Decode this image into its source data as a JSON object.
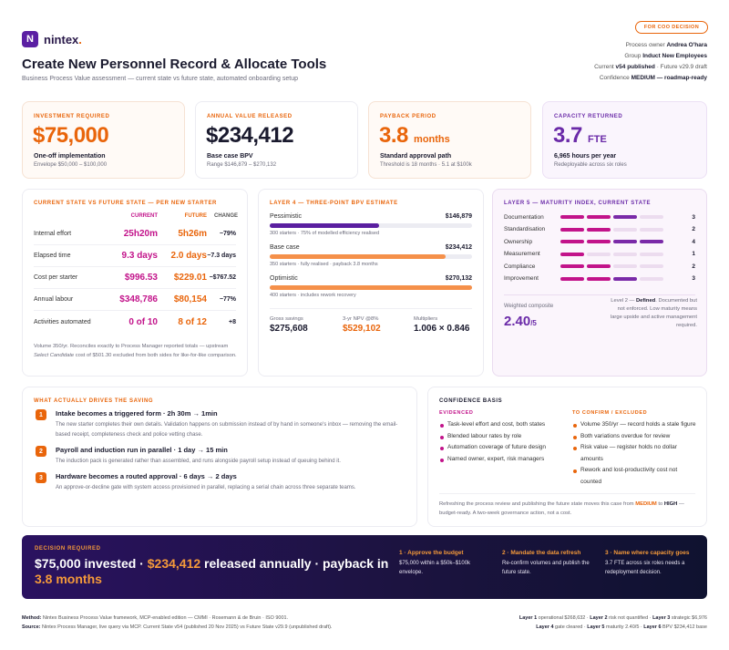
{
  "brand": {
    "logo_letter": "N",
    "name": "nintex",
    "dot": "."
  },
  "header": {
    "title": "Create New Personnel Record & Allocate Tools",
    "subtitle": "Business Process Value assessment — current state vs future state, automated onboarding setup",
    "badge": "FOR COO DECISION",
    "meta": [
      {
        "k": "Process owner ",
        "v": "Andrea O'hara",
        "x": ""
      },
      {
        "k": "Group ",
        "v": "Induct New Employees",
        "x": ""
      },
      {
        "k": "Current ",
        "v": "v54 published",
        "x": " · Future v29.9 draft"
      },
      {
        "k": "Confidence ",
        "v": "MEDIUM — roadmap-ready",
        "x": ""
      }
    ]
  },
  "kpis": [
    {
      "label": "INVESTMENT REQUIRED",
      "value": "$75,000",
      "unit": "",
      "sub1": "One-off implementation",
      "sub2": "Envelope $50,000 – $100,000",
      "color": "#e9650b"
    },
    {
      "label": "ANNUAL VALUE RELEASED",
      "value": "$234,412",
      "unit": "",
      "sub1": "Base case BPV",
      "sub2": "Range $146,879 – $270,132",
      "color": "#1a1a2e"
    },
    {
      "label": "PAYBACK PERIOD",
      "value": "3.8",
      "unit": "months",
      "sub1": "Standard approval path",
      "sub2": "Threshold is 18 months · 5.1 at $100k",
      "color": "#e9650b"
    },
    {
      "label": "CAPACITY RETURNED",
      "value": "3.7",
      "unit": "FTE",
      "sub1": "6,965 hours per year",
      "sub2": "Redeployable across six roles",
      "color": "#6a2aa8"
    }
  ],
  "state": {
    "label": "CURRENT STATE VS FUTURE STATE — PER NEW STARTER",
    "cols": [
      "CURRENT",
      "FUTURE",
      "CHANGE"
    ],
    "rows": [
      {
        "name": "Internal effort",
        "current": "25h20m",
        "future": "5h26m",
        "change": "−79%"
      },
      {
        "name": "Elapsed time",
        "current": "9.3 days",
        "future": "2.0 days",
        "change": "−7.3 days"
      },
      {
        "name": "Cost per starter",
        "current": "$996.53",
        "future": "$229.01",
        "change": "−$767.52"
      },
      {
        "name": "Annual labour",
        "current": "$348,786",
        "future": "$80,154",
        "change": "−77%"
      },
      {
        "name": "Activities automated",
        "current": "0 of 10",
        "future": "8 of 12",
        "change": "+8"
      }
    ],
    "note_a": "Volume 350/yr. Reconciles exactly to Process Manager reported totals — upstream ",
    "note_em": "Select Candidate",
    "note_b": " cost of $501.30 excluded from both sides for like-for-like comparison."
  },
  "layer4": {
    "label": "LAYER 4 — THREE-POINT BPV ESTIMATE",
    "bars": [
      {
        "name": "Pessimistic",
        "value": "$146,879",
        "fill": 0.54,
        "note": "300 starters · 75% of modelled efficiency realised",
        "color": "#5a1fa0"
      },
      {
        "name": "Base case",
        "value": "$234,412",
        "fill": 0.87,
        "note": "350 starters · fully realised · payback 3.8 months",
        "color": "#f5904a"
      },
      {
        "name": "Optimistic",
        "value": "$270,132",
        "fill": 1.0,
        "note": "400 starters · includes rework recovery",
        "color": "#f5904a"
      }
    ],
    "stats": [
      {
        "k": "Gross savings",
        "v": "$275,608"
      },
      {
        "k": "3-yr NPV @8%",
        "v": "$529,102"
      },
      {
        "k": "Multipliers",
        "v": "1.006 × 0.846"
      }
    ]
  },
  "layer5": {
    "label": "LAYER 5 — MATURITY INDEX, CURRENT STATE",
    "rows": [
      {
        "name": "Documentation",
        "score": 3
      },
      {
        "name": "Standardisation",
        "score": 2
      },
      {
        "name": "Ownership",
        "score": 4
      },
      {
        "name": "Measurement",
        "score": 1
      },
      {
        "name": "Compliance",
        "score": 2
      },
      {
        "name": "Improvement",
        "score": 3
      }
    ],
    "max_score": 4,
    "composite_label": "Weighted composite",
    "composite_value": "2.40",
    "composite_unit": "/5",
    "composite_pre": "Level 2 — ",
    "composite_level": "Defined",
    "composite_note": ". Documented but not enforced. Low maturity means large upside and active management required."
  },
  "drivers": {
    "label": "WHAT ACTUALLY DRIVES THE SAVING",
    "items": [
      {
        "n": "1",
        "head": "Intake becomes a triggered form",
        "metric": " · 2h 30m → 1min",
        "desc": "The new starter completes their own details. Validation happens on submission instead of by hand in someone's inbox — removing the email-based receipt, completeness check and police vetting chase."
      },
      {
        "n": "2",
        "head": "Payroll and induction run in parallel",
        "metric": " · 1 day → 15 min",
        "desc": "The induction pack is generated rather than assembled, and runs alongside payroll setup instead of queuing behind it."
      },
      {
        "n": "3",
        "head": "Hardware becomes a routed approval",
        "metric": " · 6 days → 2 days",
        "desc": "An approve-or-decline gate with system access provisioned in parallel, replacing a serial chain across three separate teams."
      }
    ]
  },
  "confidence": {
    "label": "CONFIDENCE BASIS",
    "evidenced_label": "EVIDENCED",
    "evidenced": [
      "Task-level effort and cost, both states",
      "Blended labour rates by role",
      "Automation coverage of future design",
      "Named owner, expert, risk managers"
    ],
    "confirm_label": "TO CONFIRM / EXCLUDED",
    "confirm": [
      "Volume 350/yr — record holds a stale figure",
      "Both variations overdue for review",
      "Risk value — register holds no dollar amounts",
      "Rework and lost-productivity cost not counted"
    ],
    "foot_a": "Refreshing the process review and publishing the future state moves this case from ",
    "foot_m": "MEDIUM",
    "foot_b": " to ",
    "foot_h": "HIGH",
    "foot_c": " — budget-ready. A two-week governance action, not a cost."
  },
  "decision": {
    "label": "DECISION REQUIRED",
    "h1": "$75,000 invested · ",
    "h2": "$234,412",
    "h3": " released annually · payback in ",
    "h4": "3.8 months",
    "steps": [
      {
        "head": "1 · Approve the budget",
        "desc": "$75,000 within a $50k–$100k envelope."
      },
      {
        "head": "2 · Mandate the data refresh",
        "desc": "Re-confirm volumes and publish the future state."
      },
      {
        "head": "3 · Name where capacity goes",
        "desc": "3.7 FTE across six roles needs a redeployment decision."
      }
    ]
  },
  "footer": {
    "method_k": "Method:",
    "method_v": " Nintex Business Process Value framework, MCP-enabled edition — CMMI · Rosemann & de Bruin · ISO 9001.",
    "source_k": "Source:",
    "source_v": " Nintex Process Manager, live query via MCP. Current State v54 (published 20 Nov 2025) vs Future State v29.9 (unpublished draft).",
    "layers": [
      {
        "k": "Layer 1",
        "v": " operational $268,632 · "
      },
      {
        "k": "Layer 2",
        "v": " risk not quantified · "
      },
      {
        "k": "Layer 3",
        "v": " strategic $6,976"
      },
      {
        "k": "Layer 4",
        "v": " gate cleared · "
      },
      {
        "k": "Layer 5",
        "v": " maturity 2.40/5 · "
      },
      {
        "k": "Layer 6",
        "v": " BPV $234,412 base"
      }
    ]
  }
}
